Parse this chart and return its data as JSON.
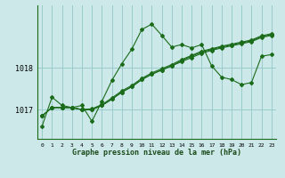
{
  "background_color": "#cce8e8",
  "grid_color": "#99cccc",
  "line_color": "#1a6b1a",
  "title": "Graphe pression niveau de la mer (hPa)",
  "xlim": [
    -0.5,
    23.5
  ],
  "ylim": [
    1016.3,
    1019.5
  ],
  "yticks": [
    1017,
    1018
  ],
  "xticks": [
    0,
    1,
    2,
    3,
    4,
    5,
    6,
    7,
    8,
    9,
    10,
    11,
    12,
    13,
    14,
    15,
    16,
    17,
    18,
    19,
    20,
    21,
    22,
    23
  ],
  "series": [
    [
      1016.6,
      1017.3,
      1017.1,
      1017.05,
      1017.1,
      1016.72,
      1017.2,
      1017.7,
      1018.1,
      1018.45,
      1018.92,
      1019.05,
      1018.78,
      1018.5,
      1018.56,
      1018.48,
      1018.56,
      1018.05,
      1017.78,
      1017.72,
      1017.6,
      1017.65,
      1018.28,
      1018.32
    ],
    [
      1016.85,
      1017.05,
      1017.05,
      1017.05,
      1017.0,
      1017.0,
      1017.1,
      1017.25,
      1017.42,
      1017.55,
      1017.72,
      1017.85,
      1017.95,
      1018.05,
      1018.18,
      1018.28,
      1018.38,
      1018.44,
      1018.5,
      1018.55,
      1018.6,
      1018.65,
      1018.75,
      1018.8
    ],
    [
      1016.85,
      1017.05,
      1017.05,
      1017.05,
      1017.0,
      1017.02,
      1017.12,
      1017.28,
      1017.45,
      1017.58,
      1017.75,
      1017.88,
      1017.98,
      1018.08,
      1018.2,
      1018.3,
      1018.4,
      1018.46,
      1018.52,
      1018.57,
      1018.62,
      1018.67,
      1018.77,
      1018.82
    ],
    [
      1016.85,
      1017.05,
      1017.05,
      1017.05,
      1017.0,
      1017.0,
      1017.1,
      1017.25,
      1017.42,
      1017.55,
      1017.72,
      1017.85,
      1017.95,
      1018.05,
      1018.15,
      1018.25,
      1018.35,
      1018.42,
      1018.48,
      1018.53,
      1018.58,
      1018.63,
      1018.73,
      1018.78
    ]
  ]
}
